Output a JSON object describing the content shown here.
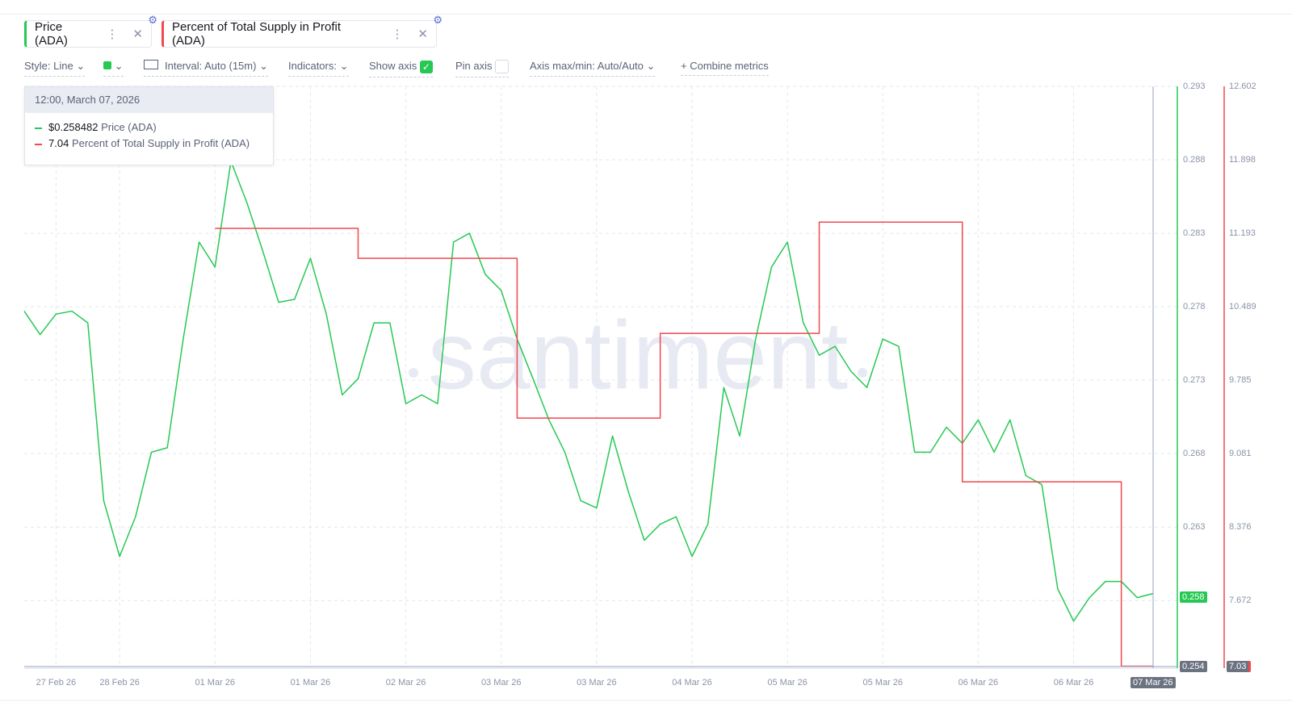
{
  "tabs": {
    "settings_icon": "⚙"
  },
  "toolbar": {
    "style": "Style: Line",
    "interval": "Interval: Auto (15m)",
    "indicators": "Indicators:",
    "show_axis": "Show axis",
    "pin_axis": "Pin axis",
    "axis_range": "Axis max/min: Auto/Auto",
    "combine": "Combine metrics"
  },
  "tooltip": {
    "time": "12:00, March 07, 2026",
    "price": "$0.258482",
    "supply": "7.04"
  },
  "watermark": "santiment",
  "crosshair": {
    "y_label": "0.254",
    "y2_label": "7.03",
    "x_label": "07 Mar 26"
  },
  "chart_data": {
    "type": "line",
    "categories": [
      null,
      null,
      "27 Feb 26",
      null,
      null,
      null,
      "28 Feb 26",
      null,
      null,
      null,
      null,
      null,
      "01 Mar 26",
      null,
      null,
      null,
      null,
      null,
      "01 Mar 26",
      null,
      null,
      null,
      null,
      null,
      "02 Mar 26",
      null,
      null,
      null,
      null,
      null,
      "03 Mar 26",
      null,
      null,
      null,
      null,
      null,
      "03 Mar 26",
      null,
      null,
      null,
      null,
      null,
      "04 Mar 26",
      null,
      null,
      null,
      null,
      null,
      "05 Mar 26",
      null,
      null,
      null,
      null,
      null,
      "05 Mar 26",
      null,
      null,
      null,
      null,
      null,
      "06 Mar 26",
      null,
      null,
      null,
      null,
      null,
      "06 Mar 26",
      null,
      null,
      null,
      null,
      null
    ],
    "series": [
      {
        "name": "Price (ADA)",
        "color": "#26c953",
        "values": [
          0.2777,
          0.2761,
          0.2775,
          0.2777,
          0.2769,
          0.2648,
          0.261,
          0.2637,
          0.2681,
          0.2684,
          0.2758,
          0.2824,
          0.2807,
          0.2879,
          0.2851,
          0.2818,
          0.2783,
          0.2785,
          0.2813,
          0.2775,
          0.272,
          0.2731,
          0.2769,
          0.2769,
          0.2714,
          0.272,
          0.2714,
          0.2824,
          0.283,
          0.2802,
          0.2791,
          0.2758,
          0.2731,
          0.2703,
          0.2681,
          0.2648,
          0.2643,
          0.2692,
          0.2654,
          0.2621,
          0.2632,
          0.2637,
          0.261,
          0.2632,
          0.2725,
          0.2692,
          0.2758,
          0.2807,
          0.2824,
          0.2769,
          0.2747,
          0.2753,
          0.2736,
          0.2725,
          0.2758,
          0.2753,
          0.2681,
          0.2681,
          0.2698,
          0.2687,
          0.2703,
          0.2681,
          0.2703,
          0.2665,
          0.2659,
          0.2588,
          0.2566,
          0.2582,
          0.2593,
          0.2593,
          0.2582,
          0.258482
        ],
        "last_label": "0.258"
      },
      {
        "name": "Percent of Total Supply in Profit (ADA)",
        "color": "#f0484d",
        "axis": "y2",
        "step": true,
        "values": [
          null,
          null,
          null,
          null,
          null,
          null,
          null,
          null,
          null,
          null,
          null,
          null,
          11.24,
          11.24,
          11.24,
          11.24,
          11.24,
          11.24,
          11.24,
          11.24,
          11.24,
          10.953,
          10.953,
          10.953,
          10.953,
          10.953,
          10.953,
          10.953,
          10.953,
          10.953,
          10.953,
          9.42,
          9.42,
          9.42,
          9.42,
          9.42,
          9.42,
          9.42,
          9.42,
          9.42,
          10.233,
          10.233,
          10.233,
          10.233,
          10.233,
          10.233,
          10.233,
          10.233,
          10.233,
          10.233,
          11.3,
          11.3,
          11.3,
          11.3,
          11.3,
          11.3,
          11.3,
          11.3,
          11.3,
          8.809,
          8.809,
          8.809,
          8.809,
          8.809,
          8.809,
          8.809,
          8.809,
          8.809,
          8.809,
          7.04,
          7.04,
          7.04
        ]
      }
    ],
    "ylim": [
      0.2534,
      0.293
    ],
    "yticks": [
      0.258,
      0.263,
      0.268,
      0.273,
      0.278,
      0.283,
      0.288,
      0.293
    ],
    "y2lim": [
      7.022,
      12.602
    ],
    "y2ticks": [
      7.672,
      8.376,
      9.081,
      9.785,
      10.489,
      11.193,
      11.898,
      12.602
    ],
    "grid": true
  }
}
